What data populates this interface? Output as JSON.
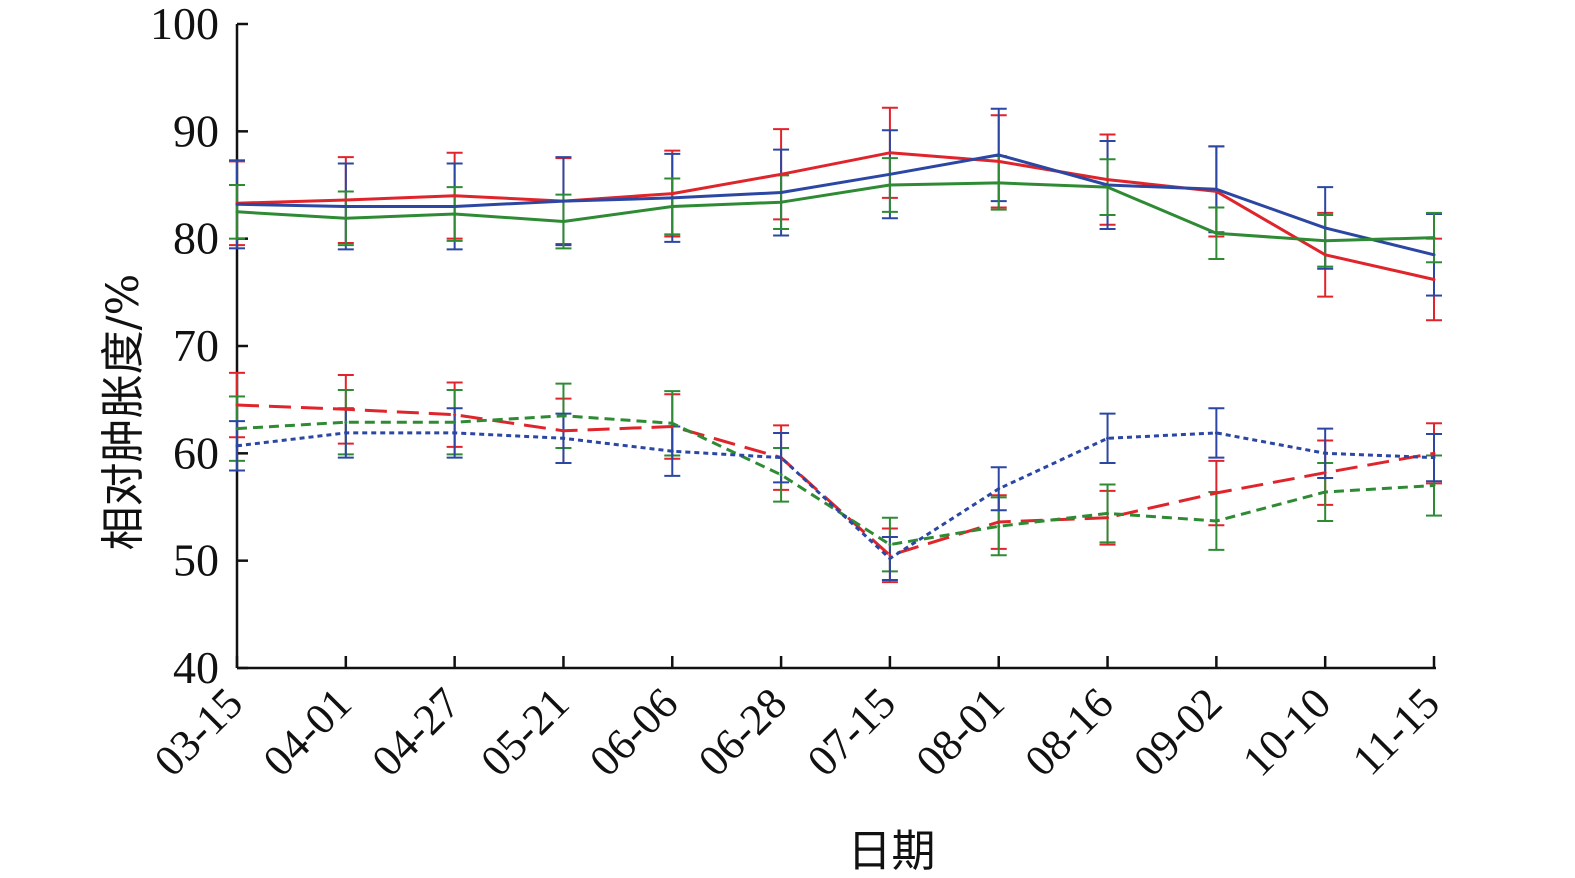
{
  "chart_data": {
    "type": "line",
    "title": "",
    "xlabel": "日期",
    "ylabel": "相对肿胀度/%",
    "ylim": [
      40,
      100
    ],
    "yticks": [
      40,
      50,
      60,
      70,
      80,
      90,
      100
    ],
    "ytick_labels": [
      "40",
      "50",
      "60",
      "70",
      "80",
      "90",
      "100"
    ],
    "categories": [
      "03-15",
      "04-01",
      "04-27",
      "05-21",
      "06-06",
      "06-28",
      "07-15",
      "08-01",
      "08-16",
      "09-02",
      "10-10",
      "11-15"
    ],
    "grid": false,
    "legend": "none",
    "series": [
      {
        "name": "red-solid",
        "color": "#e0242b",
        "style": "solid",
        "values": [
          83.3,
          83.6,
          84.0,
          83.5,
          84.2,
          86.0,
          88.0,
          87.2,
          85.5,
          84.4,
          78.5,
          76.2
        ],
        "errors": [
          3.9,
          4.0,
          4.0,
          4.0,
          4.0,
          4.2,
          4.2,
          4.3,
          4.2,
          4.2,
          3.9,
          3.8
        ]
      },
      {
        "name": "blue-solid",
        "color": "#2b47a3",
        "style": "solid",
        "values": [
          83.2,
          83.0,
          83.0,
          83.5,
          83.8,
          84.3,
          86.0,
          87.8,
          85.0,
          84.6,
          81.0,
          78.5
        ],
        "errors": [
          4.1,
          4.0,
          4.0,
          4.1,
          4.1,
          4.0,
          4.1,
          4.3,
          4.1,
          4.0,
          3.8,
          3.8
        ]
      },
      {
        "name": "green-solid",
        "color": "#2e8b34",
        "style": "solid",
        "values": [
          82.5,
          81.9,
          82.3,
          81.6,
          83.0,
          83.4,
          85.0,
          85.2,
          84.8,
          80.5,
          79.8,
          80.1
        ],
        "errors": [
          2.5,
          2.5,
          2.5,
          2.5,
          2.6,
          2.5,
          2.5,
          2.5,
          2.6,
          2.4,
          2.4,
          2.3
        ]
      },
      {
        "name": "red-longdash",
        "color": "#e0242b",
        "style": "longdash",
        "values": [
          64.5,
          64.1,
          63.6,
          62.1,
          62.5,
          59.6,
          50.5,
          53.6,
          54.0,
          56.3,
          58.2,
          60.0
        ],
        "errors": [
          3.0,
          3.2,
          3.0,
          3.0,
          3.0,
          3.0,
          2.5,
          2.5,
          2.5,
          3.0,
          3.0,
          2.8
        ]
      },
      {
        "name": "green-dashed",
        "color": "#2e8b34",
        "style": "dashed",
        "values": [
          62.3,
          62.9,
          62.9,
          63.5,
          62.8,
          58.0,
          51.5,
          53.2,
          54.4,
          53.7,
          56.4,
          57.0
        ],
        "errors": [
          3.0,
          3.0,
          3.0,
          3.0,
          3.0,
          2.5,
          2.5,
          2.7,
          2.7,
          2.7,
          2.7,
          2.8
        ]
      },
      {
        "name": "blue-dotted",
        "color": "#2b47a3",
        "style": "dotted",
        "values": [
          60.7,
          61.9,
          61.9,
          61.4,
          60.2,
          59.6,
          50.2,
          56.7,
          61.4,
          61.9,
          60.0,
          59.6
        ],
        "errors": [
          2.3,
          2.3,
          2.3,
          2.3,
          2.3,
          2.3,
          2.0,
          2.0,
          2.3,
          2.3,
          2.3,
          2.2
        ]
      }
    ]
  }
}
